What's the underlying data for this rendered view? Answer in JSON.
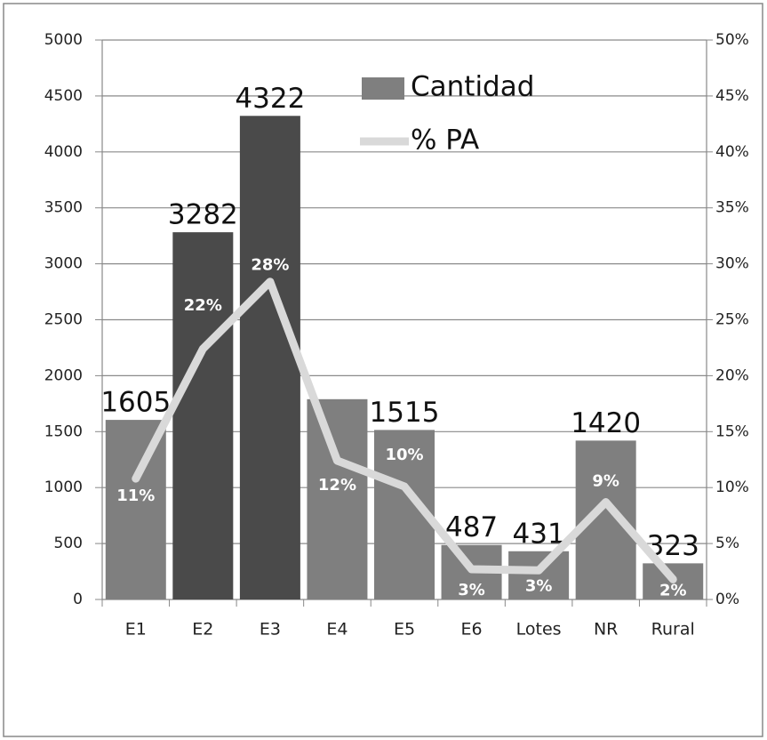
{
  "chart_data": {
    "type": "bar",
    "categories": [
      "E1",
      "E2",
      "E3",
      "E4",
      "E5",
      "E6",
      "Lotes",
      "NR",
      "Rural"
    ],
    "series": [
      {
        "name": "Cantidad",
        "type": "bar",
        "color": "#7f7f7f",
        "colors": [
          "#7f7f7f",
          "#4a4a4a",
          "#4a4a4a",
          "#7f7f7f",
          "#7f7f7f",
          "#7f7f7f",
          "#7f7f7f",
          "#7f7f7f",
          "#7f7f7f"
        ],
        "values": [
          1605,
          3282,
          4322,
          1790,
          1515,
          487,
          431,
          1420,
          323
        ],
        "value_labels": [
          "1605",
          "3282",
          "4322",
          null,
          "1515",
          "487",
          "431",
          "1420",
          "323"
        ]
      },
      {
        "name": "% PA",
        "type": "line",
        "axis": "y2",
        "color": "#d9d9d9",
        "values": [
          10.8,
          22.4,
          28.4,
          12.4,
          10.1,
          2.7,
          2.6,
          8.7,
          1.8
        ],
        "value_labels": [
          "11%",
          "22%",
          "28%",
          "12%",
          "10%",
          "3%",
          "3%",
          "9%",
          "2%"
        ]
      }
    ],
    "ylim": [
      0,
      5000
    ],
    "yticks": [
      0,
      500,
      1000,
      1500,
      2000,
      2500,
      3000,
      3500,
      4000,
      4500,
      5000
    ],
    "y2lim": [
      0,
      50
    ],
    "y2ticks": [
      {
        "value": 0,
        "label": "0%"
      },
      {
        "value": 5,
        "label": "5%"
      },
      {
        "value": 10,
        "label": "10%"
      },
      {
        "value": 15,
        "label": "15%"
      },
      {
        "value": 20,
        "label": "20%"
      },
      {
        "value": 25,
        "label": "25%"
      },
      {
        "value": 30,
        "label": "30%"
      },
      {
        "value": 35,
        "label": "35%"
      },
      {
        "value": 40,
        "label": "40%"
      },
      {
        "value": 45,
        "label": "45%"
      },
      {
        "value": 50,
        "label": "50%"
      }
    ],
    "grid": true,
    "legend": "top"
  }
}
